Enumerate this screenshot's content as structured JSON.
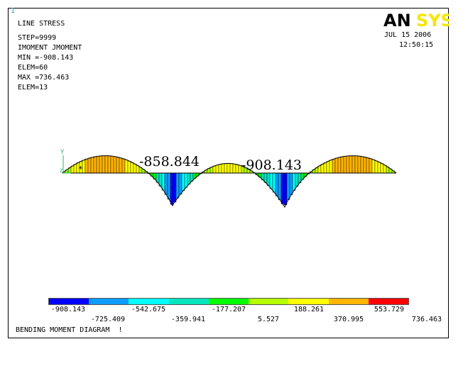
{
  "window": {
    "number": "1",
    "logo_text": "ANSYS",
    "logo_parts": [
      "AN",
      "SYS"
    ],
    "date": "JUL 15 2006",
    "time": "12:50:15"
  },
  "info": {
    "lines": [
      "LINE STRESS",
      "STEP=9999",
      "IMOMENT JMOMENT",
      "MIN =-908.143",
      "ELEM=60",
      "MAX =736.463",
      "ELEM=13"
    ]
  },
  "annotations": {
    "min_label_1": "-858.844",
    "min_label_2": "-908.143",
    "axis_y": "Y",
    "axis_z": "Z",
    "axis_x": "X"
  },
  "colors": {
    "legend": [
      "#0000ff",
      "#0d9dff",
      "#00ffff",
      "#00e5c0",
      "#00ff00",
      "#b5ff00",
      "#ffff00",
      "#ffb400",
      "#ff0000"
    ],
    "logo_black": "#000000",
    "logo_yellow": "#f5e600",
    "window_number": "#1aa3c8"
  },
  "legend": {
    "values_top": [
      "-908.143",
      "-542.675",
      "-177.207",
      "188.261",
      "553.729"
    ],
    "values_bottom": [
      "-725.409",
      "-359.941",
      "5.527",
      "370.995",
      "736.463"
    ]
  },
  "footer": {
    "title": "BENDING MOMENT DIAGRAM  !"
  }
}
